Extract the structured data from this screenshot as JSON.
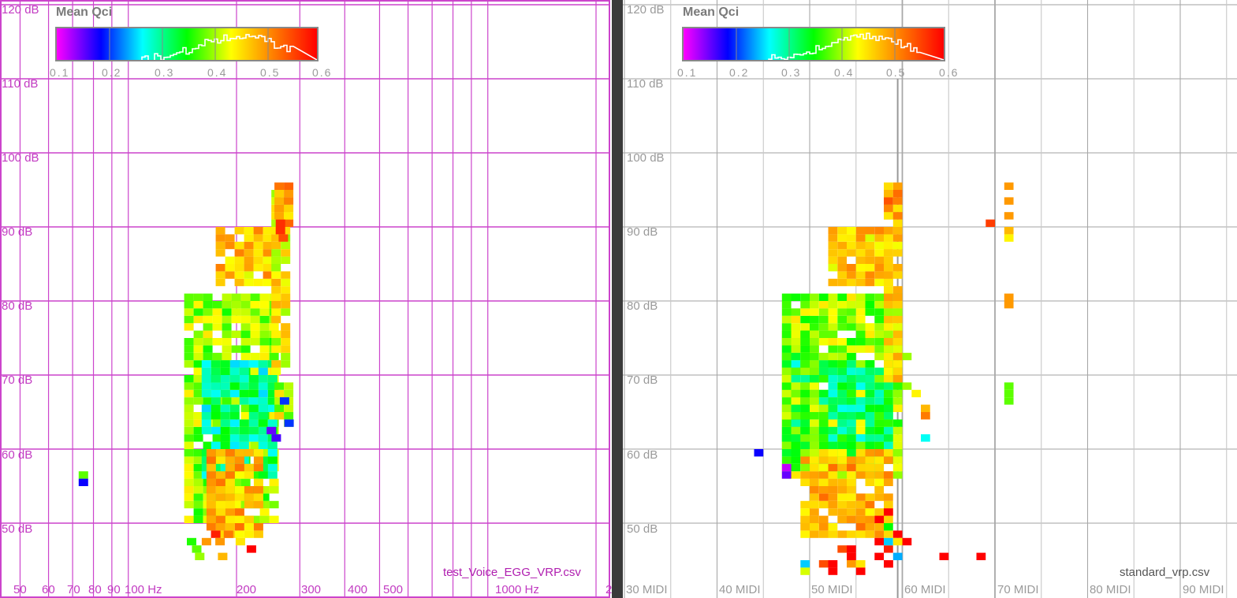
{
  "colors": {
    "left_grid": "#cc44cc",
    "right_grid": "#b4b4b4",
    "divider": "#3a3a3a",
    "colormap": [
      "#ff00ff",
      "#0000ff",
      "#00ffff",
      "#00ff00",
      "#ffff00",
      "#ff8000",
      "#ff0000"
    ]
  },
  "colorbar": {
    "title": "Mean Qci",
    "ticks": [
      "0.1",
      "0.2",
      "0.3",
      "0.4",
      "0.5",
      "0.6"
    ],
    "range": [
      0.1,
      0.6
    ]
  },
  "left": {
    "filename": "test_Voice_EGG_VRP.csv",
    "y_labels": [
      "120 dB",
      "110 dB",
      "100 dB",
      "90 dB",
      "80 dB",
      "70 dB",
      "60 dB",
      "50 dB"
    ],
    "x_labels": [
      "50",
      "60",
      "70",
      "80",
      "90",
      "100 Hz",
      "200",
      "300",
      "400",
      "500",
      "1000 Hz",
      "2"
    ]
  },
  "right": {
    "filename": "standard_vrp.csv",
    "y_labels": [
      "120 dB",
      "110 dB",
      "100 dB",
      "90 dB",
      "80 dB",
      "70 dB",
      "60 dB",
      "50 dB"
    ],
    "x_labels": [
      "30 MIDI",
      "40 MIDI",
      "50 MIDI",
      "60 MIDI",
      "70 MIDI",
      "80 MIDI",
      "90 MIDI"
    ]
  },
  "chart_data": [
    {
      "type": "heatmap",
      "title": "Mean Qci",
      "source": "test_Voice_EGG_VRP.csv",
      "xlabel": "",
      "ylabel": "",
      "x_scale": "log frequency (Hz)",
      "ylim": [
        44,
        120
      ],
      "value_range": [
        0.1,
        0.6
      ],
      "cells": [
        [
          75,
          56,
          0.38
        ],
        [
          75,
          55,
          0.18
        ],
        [
          150,
          47,
          0.36
        ],
        [
          155,
          46,
          0.38
        ],
        [
          158,
          45,
          0.4
        ],
        [
          165,
          47,
          0.5
        ],
        [
          175,
          48,
          0.58
        ],
        [
          180,
          47,
          0.5
        ],
        [
          183,
          45,
          0.48
        ],
        [
          190,
          48,
          0.52
        ],
        [
          205,
          47,
          0.45
        ],
        [
          220,
          46,
          0.6
        ],
        [
          265,
          90,
          0.57
        ],
        [
          265,
          89,
          0.57
        ],
        [
          270,
          88,
          0.55
        ],
        [
          272,
          66,
          0.2
        ],
        [
          280,
          63,
          0.2
        ],
        [
          250,
          62,
          0.15
        ],
        [
          258,
          61,
          0.16
        ]
      ],
      "regions": [
        {
          "x_hz": [
            143,
            255
          ],
          "y_db": [
            50,
            81
          ],
          "value": 0.4
        },
        {
          "x_hz": [
            160,
            250
          ],
          "y_db": [
            56,
            72
          ],
          "value": 0.3
        },
        {
          "x_hz": [
            165,
            235
          ],
          "y_db": [
            48,
            60
          ],
          "value": 0.48
        },
        {
          "x_hz": [
            175,
            240
          ],
          "y_db": [
            82,
            90
          ],
          "value": 0.47
        },
        {
          "x_hz": [
            250,
            275
          ],
          "y_db": [
            70,
            96
          ],
          "value": 0.44
        },
        {
          "x_hz": [
            255,
            285
          ],
          "y_db": [
            63,
            69
          ],
          "value": 0.42
        },
        {
          "x_hz": [
            255,
            275
          ],
          "y_db": [
            90,
            96
          ],
          "value": 0.49
        }
      ]
    },
    {
      "type": "heatmap",
      "title": "Mean Qci",
      "source": "standard_vrp.csv",
      "xlabel": "",
      "ylabel": "",
      "x_scale": "MIDI",
      "xlim": [
        30,
        95
      ],
      "ylim": [
        43,
        120
      ],
      "value_range": [
        0.1,
        0.6
      ],
      "cells": [
        [
          44,
          59,
          0.18
        ],
        [
          47,
          57,
          0.12
        ],
        [
          47,
          56,
          0.15
        ],
        [
          69,
          90,
          0.56
        ],
        [
          71,
          95,
          0.5
        ],
        [
          71,
          93,
          0.5
        ],
        [
          71,
          91,
          0.5
        ],
        [
          71,
          89,
          0.48
        ],
        [
          71,
          88,
          0.44
        ],
        [
          71,
          80,
          0.5
        ],
        [
          71,
          79,
          0.5
        ],
        [
          71,
          68,
          0.38
        ],
        [
          71,
          67,
          0.38
        ],
        [
          71,
          66,
          0.38
        ],
        [
          62,
          61,
          0.27
        ],
        [
          61,
          67,
          0.44
        ],
        [
          62,
          64,
          0.52
        ],
        [
          62,
          65,
          0.48
        ],
        [
          60,
          72,
          0.4
        ],
        [
          60,
          68,
          0.4
        ],
        [
          57,
          50,
          0.6
        ],
        [
          59,
          48,
          0.6
        ],
        [
          60,
          47,
          0.6
        ],
        [
          64,
          45,
          0.6
        ],
        [
          68,
          45,
          0.6
        ],
        [
          57,
          47,
          0.6
        ],
        [
          58,
          44,
          0.6
        ],
        [
          57,
          45,
          0.6
        ],
        [
          54,
          45,
          0.6
        ],
        [
          54,
          46,
          0.6
        ],
        [
          58,
          46,
          0.58
        ],
        [
          59,
          45,
          0.24
        ],
        [
          58,
          47,
          0.25
        ],
        [
          58,
          49,
          0.35
        ],
        [
          58,
          51,
          0.6
        ],
        [
          53,
          46,
          0.55
        ],
        [
          54,
          44,
          0.5
        ],
        [
          59,
          47,
          0.45
        ],
        [
          49,
          44,
          0.25
        ],
        [
          51,
          44,
          0.55
        ],
        [
          52,
          44,
          0.6
        ],
        [
          55,
          44,
          0.45
        ],
        [
          58,
          44,
          0.6
        ],
        [
          49,
          43,
          0.42
        ],
        [
          55,
          43,
          0.6
        ],
        [
          52,
          43,
          0.6
        ]
      ],
      "regions": [
        {
          "x_midi": [
            47,
            59
          ],
          "y_db": [
            56,
            81
          ],
          "value": 0.4
        },
        {
          "x_midi": [
            48,
            58
          ],
          "y_db": [
            58,
            72
          ],
          "value": 0.32
        },
        {
          "x_midi": [
            49,
            58
          ],
          "y_db": [
            48,
            60
          ],
          "value": 0.48
        },
        {
          "x_midi": [
            52,
            58
          ],
          "y_db": [
            82,
            90
          ],
          "value": 0.47
        },
        {
          "x_midi": [
            58,
            59
          ],
          "y_db": [
            69,
            96
          ],
          "value": 0.45
        },
        {
          "x_midi": [
            58,
            59
          ],
          "y_db": [
            90,
            96
          ],
          "value": 0.5
        },
        {
          "x_midi": [
            47,
            50
          ],
          "y_db": [
            59,
            76
          ],
          "value": 0.38
        }
      ]
    }
  ]
}
